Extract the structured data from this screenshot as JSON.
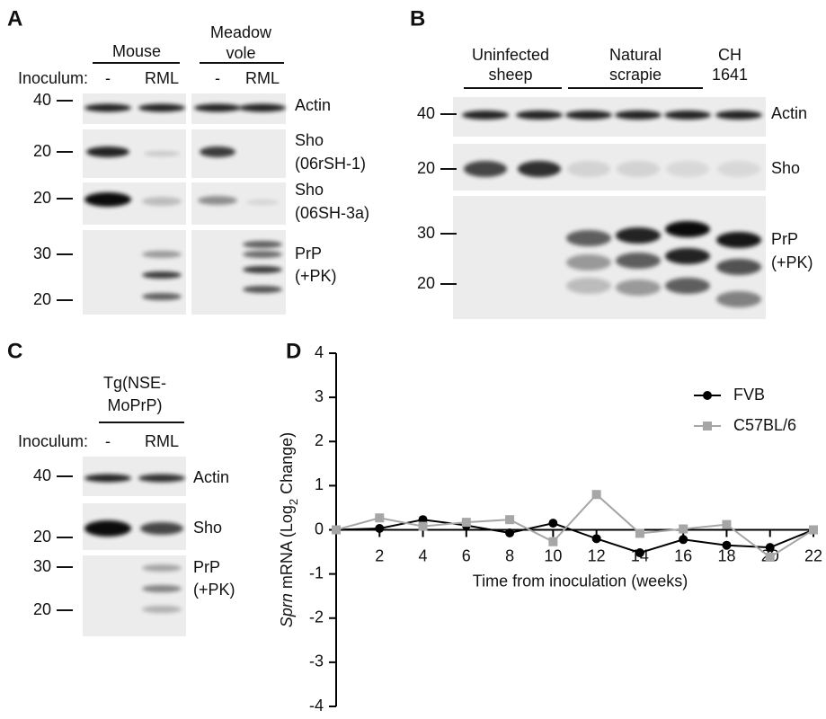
{
  "panels": {
    "A": {
      "label": "A",
      "groups": [
        [
          "Mouse"
        ],
        [
          "Meadow",
          "vole"
        ]
      ],
      "inoculum": "Inoculum:",
      "lanes": [
        "-",
        "RML",
        "-",
        "RML"
      ],
      "markers": [
        "40",
        "20",
        "20",
        "30",
        "20"
      ],
      "blots": [
        [
          "Actin"
        ],
        [
          "Sho",
          "(06rSH-1)"
        ],
        [
          "Sho",
          "(06SH-3a)"
        ],
        [
          "PrP",
          "(+PK)"
        ]
      ]
    },
    "B": {
      "label": "B",
      "groups": [
        [
          "Uninfected",
          "sheep"
        ],
        [
          "Natural",
          "scrapie"
        ],
        [
          "CH",
          "1641"
        ]
      ],
      "markers": [
        "40",
        "20",
        "30",
        "20"
      ],
      "blots": [
        [
          "Actin"
        ],
        [
          "Sho"
        ],
        [
          "PrP",
          "(+PK)"
        ]
      ]
    },
    "C": {
      "label": "C",
      "groups": [
        [
          "Tg(NSE-",
          "MoPrP)"
        ]
      ],
      "inoculum": "Inoculum:",
      "lanes": [
        "-",
        "RML"
      ],
      "markers": [
        "40",
        "20",
        "30",
        "20"
      ],
      "blots": [
        [
          "Actin"
        ],
        [
          "Sho"
        ],
        [
          "PrP",
          "(+PK)"
        ]
      ]
    }
  },
  "chart_data": {
    "type": "line",
    "label": "D",
    "x": [
      0,
      2,
      4,
      6,
      8,
      10,
      12,
      14,
      16,
      18,
      20,
      22
    ],
    "series": [
      {
        "name": "FVB",
        "color": "#000000",
        "marker": "circle",
        "values": [
          0,
          0.03,
          0.23,
          0.1,
          -0.07,
          0.15,
          -0.2,
          -0.52,
          -0.22,
          -0.35,
          -0.4,
          0
        ]
      },
      {
        "name": "C57BL/6",
        "color": "#a6a6a6",
        "marker": "square",
        "values": [
          0,
          0.27,
          0.08,
          0.17,
          0.23,
          -0.27,
          0.8,
          -0.08,
          0.02,
          0.12,
          -0.62,
          0
        ]
      }
    ],
    "xlim": [
      0,
      22
    ],
    "xticks": [
      2,
      4,
      6,
      8,
      10,
      12,
      14,
      16,
      18,
      20,
      22
    ],
    "ylim": [
      -4,
      4
    ],
    "yticks": [
      -4,
      -3,
      -2,
      -1,
      0,
      1,
      2,
      3,
      4
    ],
    "xlabel": "Time from inoculation (weeks)",
    "ylabel": [
      "Sprn",
      " mRNA  (Log",
      "2",
      " Change)"
    ],
    "legend": "upper right"
  }
}
